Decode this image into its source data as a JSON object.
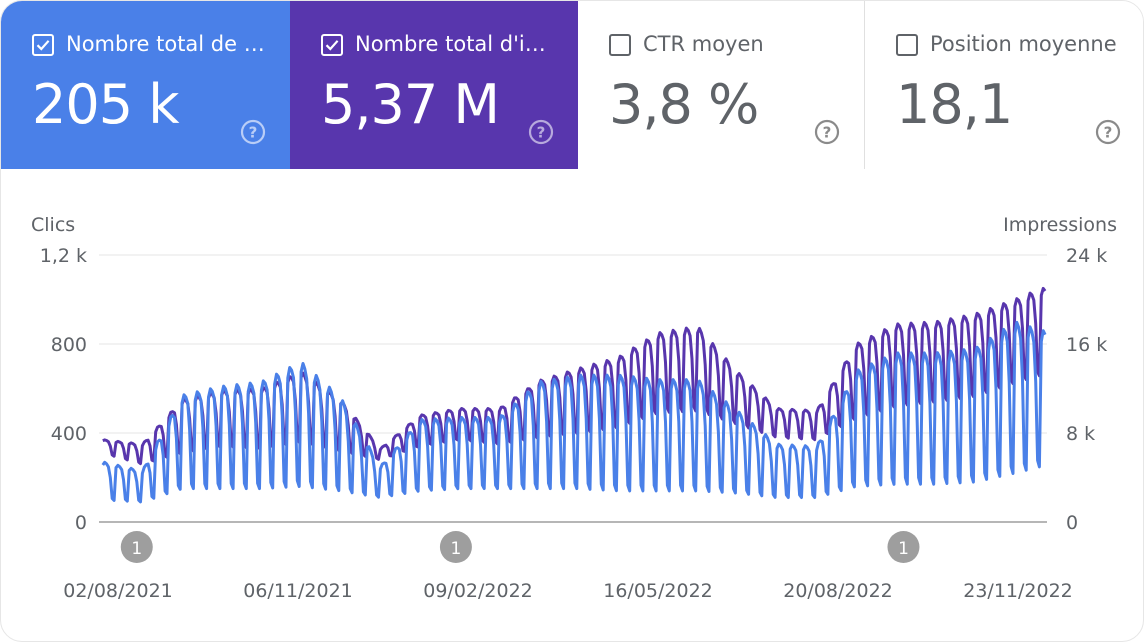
{
  "cards": [
    {
      "label": "Nombre total de …",
      "value": "205 k",
      "checked": true,
      "color": "#4a80e8"
    },
    {
      "label": "Nombre total d'i…",
      "value": "5,37 M",
      "checked": true,
      "color": "#5836ad"
    },
    {
      "label": "CTR moyen",
      "value": "3,8 %",
      "checked": false
    },
    {
      "label": "Position moyenne",
      "value": "18,1",
      "checked": false
    }
  ],
  "help_icon": "question-circle-icon",
  "chart_data": {
    "type": "line",
    "left_axis_label": "Clics",
    "right_axis_label": "Impressions",
    "left_ticks": [
      "1,2 k",
      "800",
      "400",
      "0"
    ],
    "left_tick_values": [
      1200,
      800,
      400,
      0
    ],
    "right_ticks": [
      "24 k",
      "16 k",
      "8 k",
      "0"
    ],
    "right_tick_values": [
      24000,
      16000,
      8000,
      0
    ],
    "left_ylim": [
      0,
      1200
    ],
    "right_ylim": [
      0,
      24000
    ],
    "x_tick_labels": [
      "02/08/2021",
      "06/11/2021",
      "09/02/2022",
      "16/05/2022",
      "20/08/2022",
      "23/11/2022"
    ],
    "x_range": [
      "2021-07-31",
      "2022-12-15"
    ],
    "annotations": [
      {
        "date": "2021-08-20",
        "label": "1"
      },
      {
        "date": "2022-02-05",
        "label": "1"
      },
      {
        "date": "2022-09-30",
        "label": "1"
      }
    ],
    "grid": true,
    "series": [
      {
        "axis": "right",
        "color": "#5836ad",
        "weekday_points": [
          [
            "2021-08-02",
            7400
          ],
          [
            "2021-08-23",
            7000
          ],
          [
            "2021-09-13",
            11000
          ],
          [
            "2021-10-04",
            11800
          ],
          [
            "2021-10-25",
            12000
          ],
          [
            "2021-11-15",
            13500
          ],
          [
            "2021-12-06",
            11000
          ],
          [
            "2021-12-27",
            6600
          ],
          [
            "2022-01-17",
            9600
          ],
          [
            "2022-02-07",
            10200
          ],
          [
            "2022-02-28",
            10200
          ],
          [
            "2022-03-21",
            12700
          ],
          [
            "2022-04-11",
            13800
          ],
          [
            "2022-05-02",
            14800
          ],
          [
            "2022-05-23",
            17000
          ],
          [
            "2022-06-13",
            17600
          ],
          [
            "2022-07-04",
            13500
          ],
          [
            "2022-07-25",
            10200
          ],
          [
            "2022-08-15",
            10000
          ],
          [
            "2022-09-05",
            16000
          ],
          [
            "2022-09-26",
            17800
          ],
          [
            "2022-10-17",
            18000
          ],
          [
            "2022-11-07",
            18700
          ],
          [
            "2022-11-28",
            20000
          ],
          [
            "2022-12-12",
            21000
          ]
        ],
        "weekend_points": [
          [
            "2021-08-02",
            6200
          ],
          [
            "2021-08-23",
            5200
          ],
          [
            "2021-09-13",
            6200
          ],
          [
            "2021-10-04",
            6800
          ],
          [
            "2021-10-25",
            6600
          ],
          [
            "2021-11-15",
            7200
          ],
          [
            "2021-12-06",
            6400
          ],
          [
            "2021-12-27",
            5600
          ],
          [
            "2022-01-17",
            6800
          ],
          [
            "2022-02-07",
            7400
          ],
          [
            "2022-02-28",
            7000
          ],
          [
            "2022-03-21",
            7600
          ],
          [
            "2022-04-11",
            8000
          ],
          [
            "2022-05-02",
            8500
          ],
          [
            "2022-05-23",
            9800
          ],
          [
            "2022-06-13",
            10000
          ],
          [
            "2022-07-04",
            8800
          ],
          [
            "2022-07-25",
            7600
          ],
          [
            "2022-08-15",
            7400
          ],
          [
            "2022-09-05",
            9300
          ],
          [
            "2022-09-26",
            10400
          ],
          [
            "2022-10-17",
            10800
          ],
          [
            "2022-11-07",
            11300
          ],
          [
            "2022-11-28",
            12500
          ],
          [
            "2022-12-12",
            13200
          ]
        ]
      },
      {
        "axis": "left",
        "color": "#4a80e8",
        "weekday_points": [
          [
            "2021-08-02",
            270
          ],
          [
            "2021-08-23",
            230
          ],
          [
            "2021-09-13",
            570
          ],
          [
            "2021-10-04",
            610
          ],
          [
            "2021-10-25",
            630
          ],
          [
            "2021-11-15",
            720
          ],
          [
            "2021-12-06",
            560
          ],
          [
            "2021-12-27",
            250
          ],
          [
            "2022-01-17",
            460
          ],
          [
            "2022-02-07",
            470
          ],
          [
            "2022-02-28",
            470
          ],
          [
            "2022-03-21",
            630
          ],
          [
            "2022-04-11",
            660
          ],
          [
            "2022-05-02",
            660
          ],
          [
            "2022-05-23",
            640
          ],
          [
            "2022-06-13",
            640
          ],
          [
            "2022-07-04",
            500
          ],
          [
            "2022-07-25",
            350
          ],
          [
            "2022-08-15",
            340
          ],
          [
            "2022-09-05",
            680
          ],
          [
            "2022-09-26",
            760
          ],
          [
            "2022-10-17",
            760
          ],
          [
            "2022-11-07",
            780
          ],
          [
            "2022-11-28",
            900
          ],
          [
            "2022-12-12",
            860
          ]
        ],
        "weekend_points": [
          [
            "2021-08-02",
            100
          ],
          [
            "2021-08-23",
            90
          ],
          [
            "2021-09-13",
            150
          ],
          [
            "2021-10-04",
            150
          ],
          [
            "2021-10-25",
            150
          ],
          [
            "2021-11-15",
            160
          ],
          [
            "2021-12-06",
            140
          ],
          [
            "2021-12-27",
            110
          ],
          [
            "2022-01-17",
            140
          ],
          [
            "2022-02-07",
            150
          ],
          [
            "2022-02-28",
            150
          ],
          [
            "2022-03-21",
            150
          ],
          [
            "2022-04-11",
            150
          ],
          [
            "2022-05-02",
            140
          ],
          [
            "2022-05-23",
            140
          ],
          [
            "2022-06-13",
            140
          ],
          [
            "2022-07-04",
            130
          ],
          [
            "2022-07-25",
            110
          ],
          [
            "2022-08-15",
            110
          ],
          [
            "2022-09-05",
            160
          ],
          [
            "2022-09-26",
            170
          ],
          [
            "2022-10-17",
            170
          ],
          [
            "2022-11-07",
            180
          ],
          [
            "2022-11-28",
            220
          ],
          [
            "2022-12-12",
            250
          ]
        ]
      }
    ]
  }
}
